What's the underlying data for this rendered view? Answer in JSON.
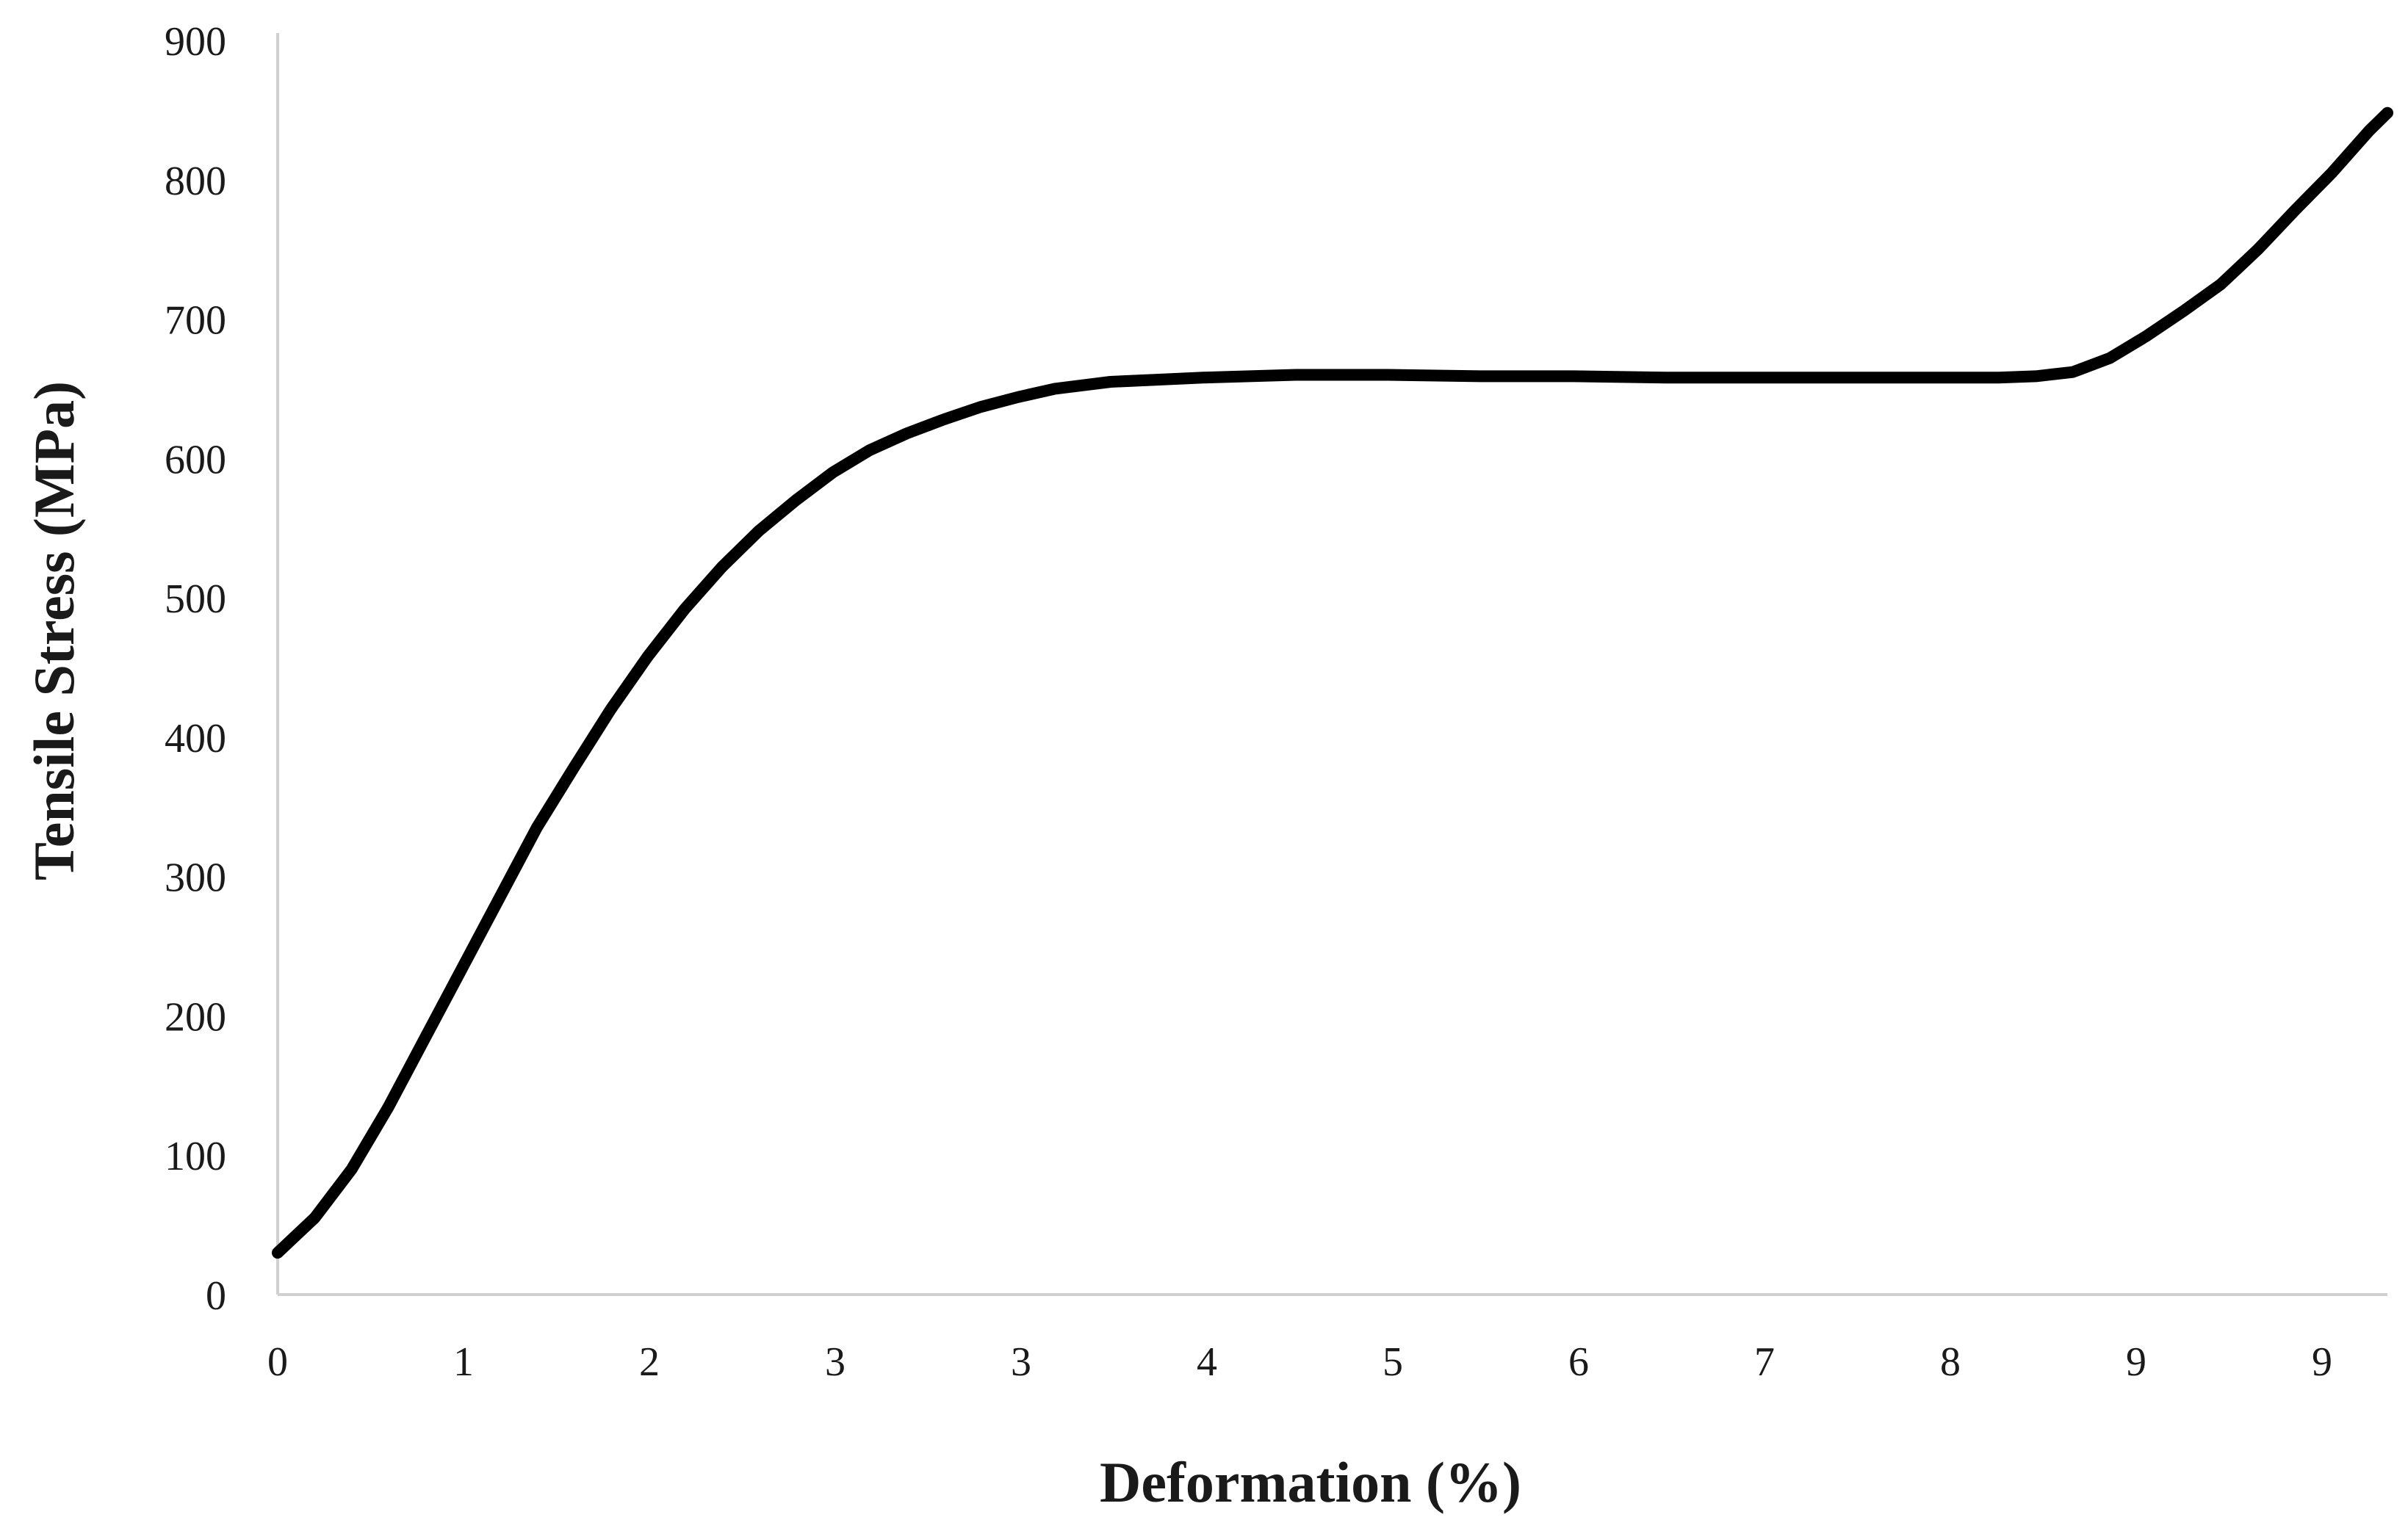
{
  "chart_data": {
    "type": "line",
    "title": "",
    "xlabel": "Deformation (%)",
    "ylabel": "Tensile Stress (MPa)",
    "xlim": [
      0,
      11.4
    ],
    "ylim": [
      0,
      900
    ],
    "grid": false,
    "legend": "none",
    "line_color": "#000000",
    "axis_color": "#d0d0d0",
    "x_tick_labels": [
      "0",
      "1",
      "2",
      "3",
      "3",
      "4",
      "5",
      "6",
      "7",
      "8",
      "9",
      "9"
    ],
    "y_tick_labels": [
      "0",
      "100",
      "200",
      "300",
      "400",
      "500",
      "600",
      "700",
      "800",
      "900"
    ],
    "series": [
      {
        "x": [
          0,
          0.2,
          0.4,
          0.6,
          0.8,
          1.0,
          1.2,
          1.4,
          1.6,
          1.8,
          2.0,
          2.2,
          2.4,
          2.6,
          2.8,
          3.0,
          3.2,
          3.4,
          3.6,
          3.8,
          4.0,
          4.2,
          4.5,
          5.0,
          5.5,
          6.0,
          6.5,
          7.0,
          7.5,
          8.0,
          8.5,
          9.0,
          9.3,
          9.5,
          9.7,
          9.9,
          10.1,
          10.3,
          10.5,
          10.7,
          10.9,
          11.1,
          11.3,
          11.4
        ],
        "y": [
          30,
          55,
          90,
          135,
          185,
          235,
          285,
          335,
          378,
          420,
          458,
          492,
          522,
          548,
          570,
          590,
          606,
          618,
          628,
          637,
          644,
          650,
          655,
          658,
          660,
          660,
          659,
          659,
          658,
          658,
          658,
          658,
          658,
          659,
          662,
          672,
          688,
          706,
          725,
          750,
          778,
          805,
          835,
          848
        ]
      }
    ]
  }
}
